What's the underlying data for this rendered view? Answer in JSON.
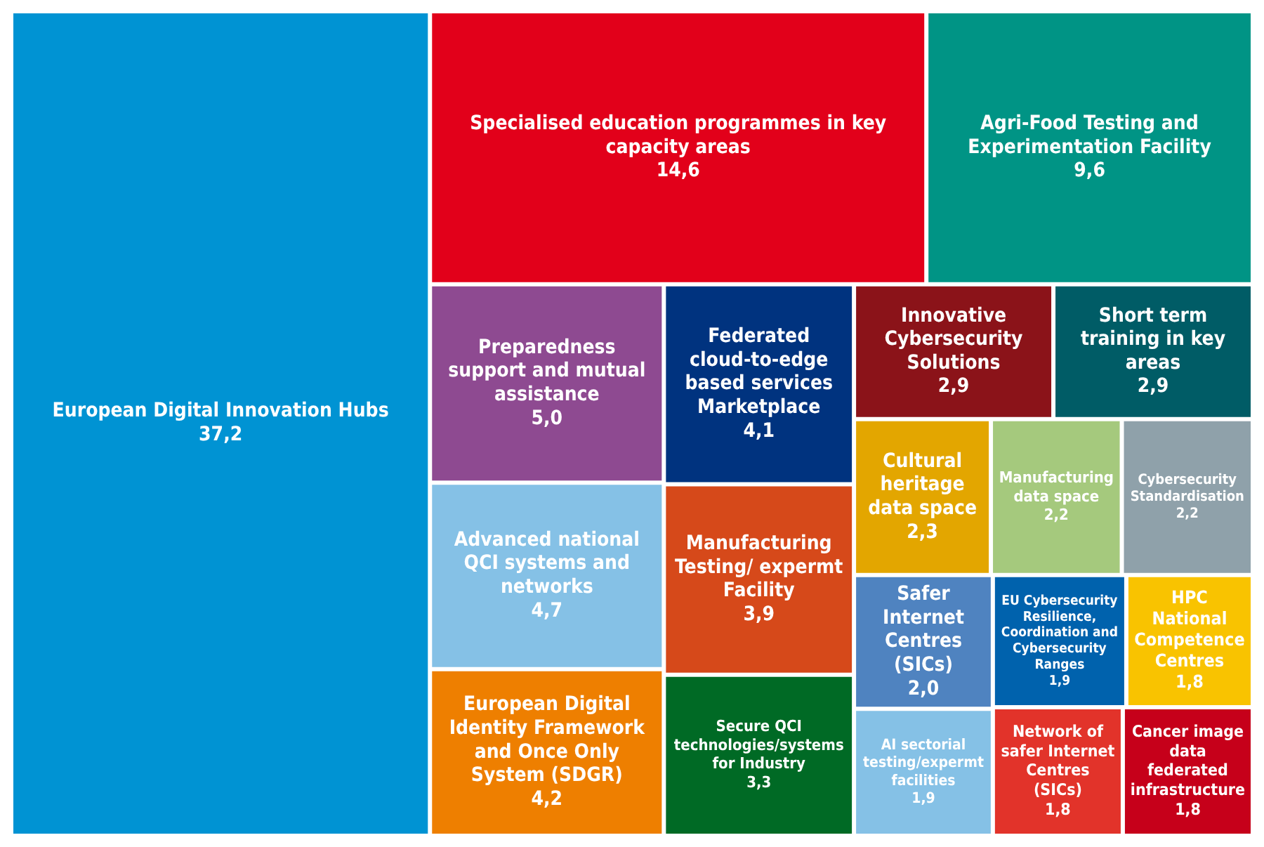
{
  "chart_data": {
    "type": "other",
    "categories": [
      "European Digital Innovation Hubs",
      "Specialised education programmes in key capacity areas",
      "Agri-Food Testing and Experimentation Facility",
      "Preparedness support and mutual assistance",
      "Advanced national QCI systems and networks",
      "European Digital Identity Framework and Once Only System (SDGR)",
      "Federated cloud-to-edge based services Marketplace",
      "Manufacturing Testing/ expermt Facility",
      "Secure QCI technologies/systems for Industry",
      "Innovative Cybersecurity Solutions",
      "Short term training in key areas",
      "Cultural heritage data space",
      "Manufacturing data space",
      "Cybersecurity Standardisation",
      "Safer Internet Centres (SICs)",
      "AI sectorial testing/expermt facilities",
      "EU Cybersecurity Resilience, Coordination and Cybersecurity Ranges",
      "HPC National Competence Centres",
      "Network of safer Internet Centres (SICs)",
      "Cancer image data federated infrastructure"
    ],
    "values": [
      37.2,
      14.6,
      9.6,
      5.0,
      4.7,
      4.2,
      4.1,
      3.9,
      3.3,
      2.9,
      2.9,
      2.3,
      2.2,
      2.2,
      2.0,
      1.9,
      1.9,
      1.8,
      1.8,
      1.8
    ],
    "value_labels": [
      "37,2",
      "14,6",
      "9,6",
      "5,0",
      "4,7",
      "4,2",
      "4,1",
      "3,9",
      "3,3",
      "2,9",
      "2,9",
      "2,3",
      "2,2",
      "2,2",
      "2,0",
      "1,9",
      "1,9",
      "1,8",
      "1,8",
      "1,8"
    ],
    "colors": [
      "#0093d3",
      "#e2001a",
      "#009485",
      "#8e4a91",
      "#85c1e6",
      "#ee7f00",
      "#00337f",
      "#d6491a",
      "#006a25",
      "#8b1319",
      "#005c66",
      "#e3a600",
      "#a5c97d",
      "#8fa1aa",
      "#4f83c0",
      "#85c1e6",
      "#0062ad",
      "#f9c300",
      "#e2332a",
      "#c6001a"
    ]
  }
}
